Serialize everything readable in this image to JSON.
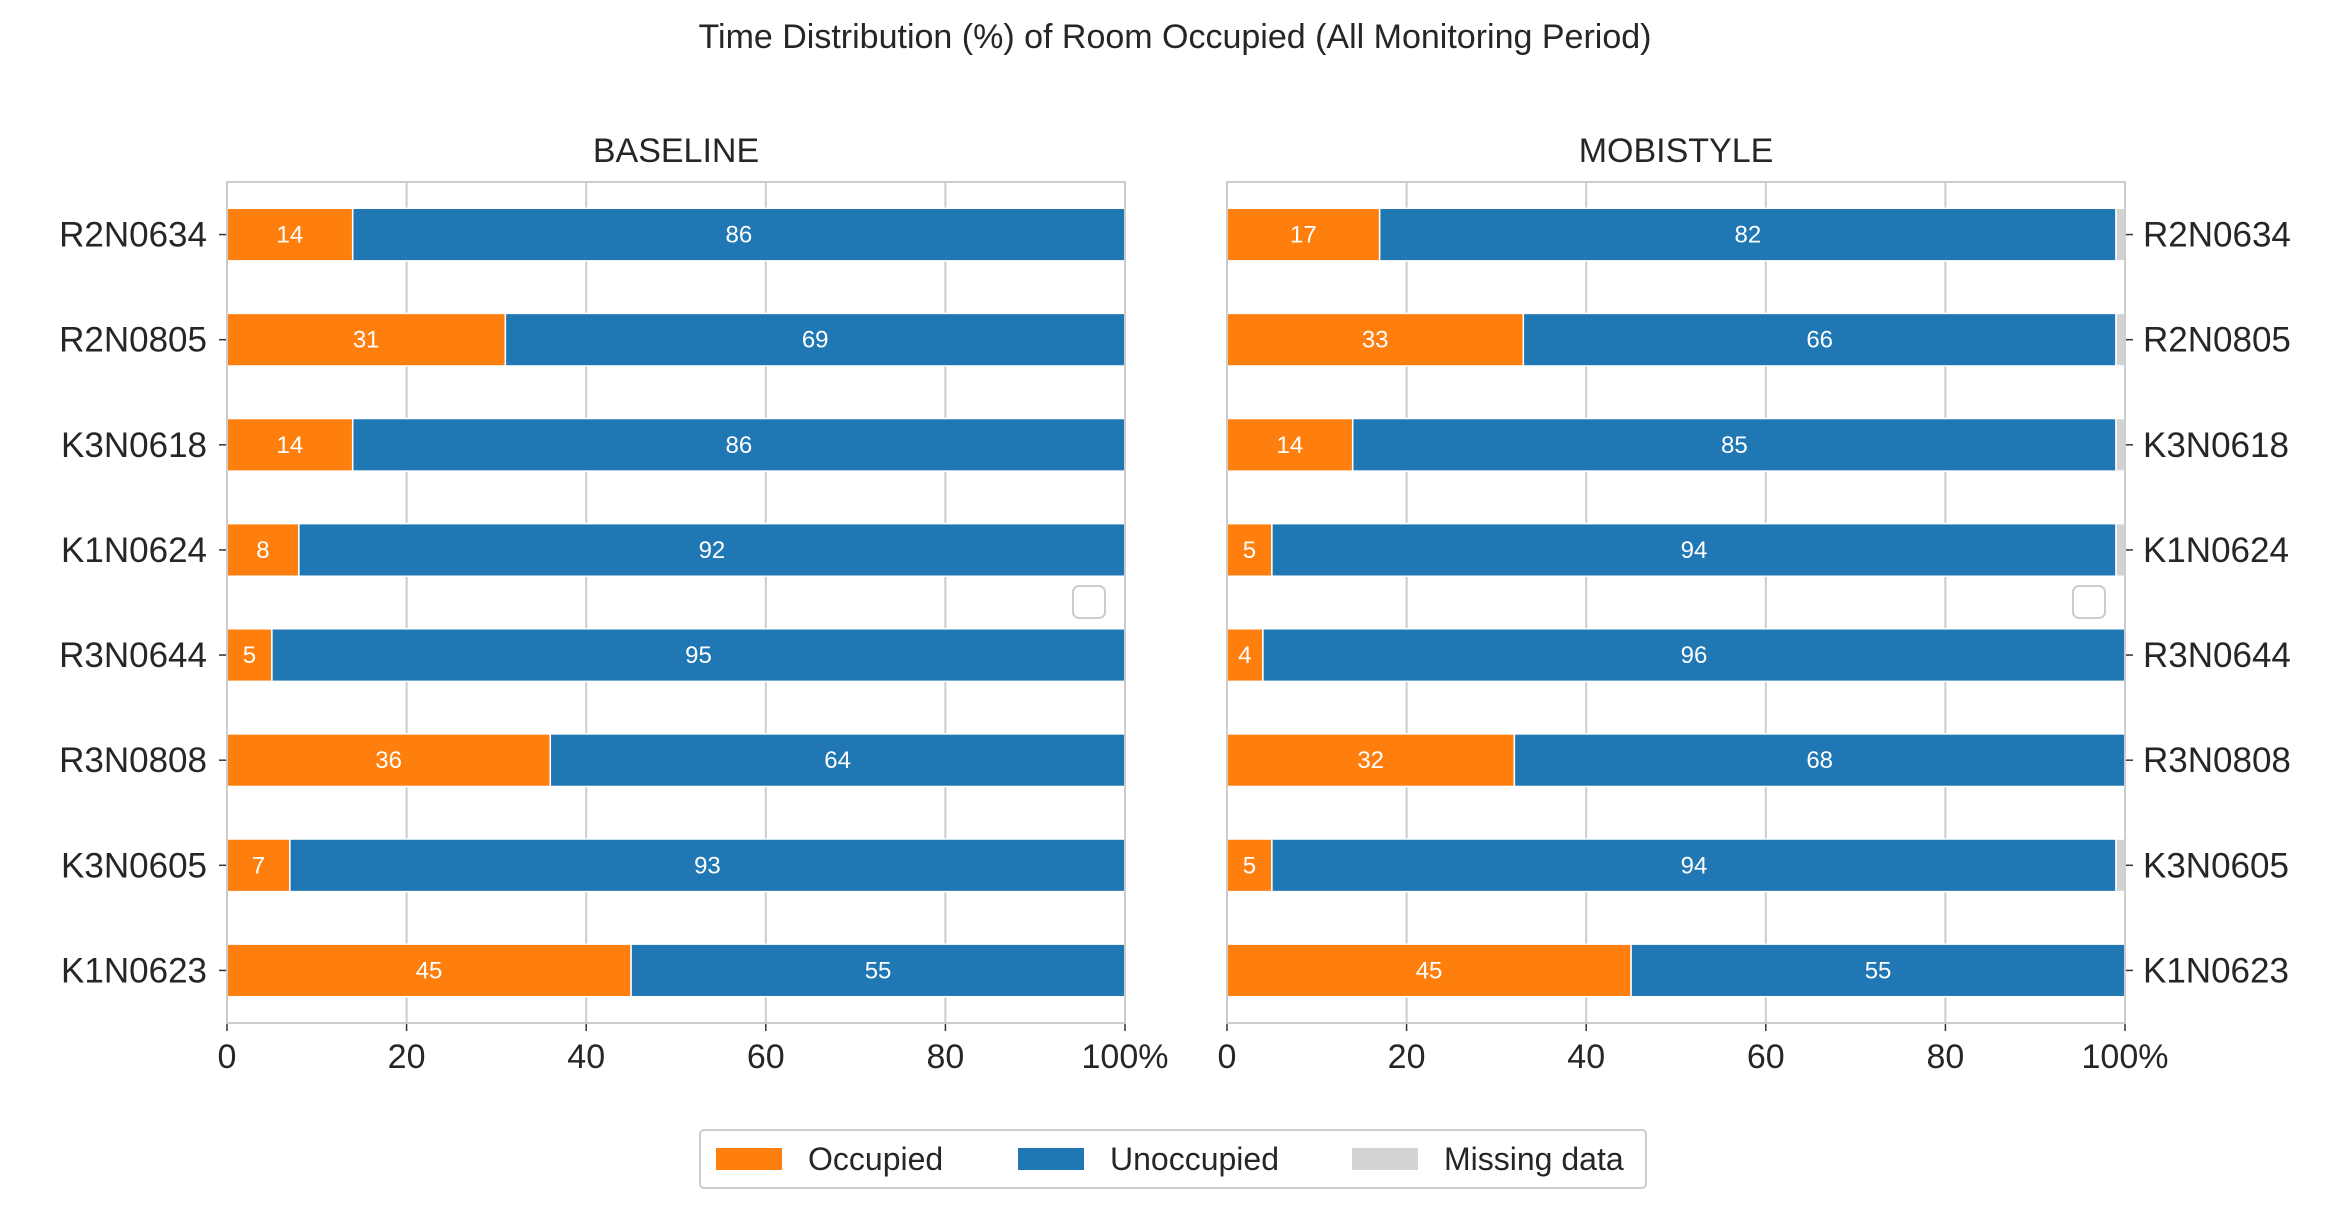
{
  "chart_data": {
    "type": "bar",
    "orientation": "horizontal",
    "stacked": true,
    "title": "Time Distribution (%) of Room Occupied (All Monitoring Period)",
    "xlim": [
      0,
      100
    ],
    "x_ticks": [
      "0",
      "20",
      "40",
      "60",
      "80",
      "100%"
    ],
    "grid": true,
    "legend_placement": "bottom-center",
    "legend": [
      {
        "name": "Occupied",
        "color": "#ff7f0e"
      },
      {
        "name": "Unoccupied",
        "color": "#1f77b4"
      },
      {
        "name": "Missing data",
        "color": "#d3d3d3"
      }
    ],
    "categories": [
      "R2N0634",
      "R2N0805",
      "K3N0618",
      "K1N0624",
      "R3N0644",
      "R3N0808",
      "K3N0605",
      "K1N0623"
    ],
    "panels": [
      {
        "title": "BASELINE",
        "label_side": "left",
        "series": [
          {
            "name": "Occupied",
            "values": [
              14,
              31,
              14,
              8,
              5,
              36,
              7,
              45
            ],
            "labels": [
              "14",
              "31",
              "14",
              "8",
              "5",
              "36",
              "7",
              "45"
            ]
          },
          {
            "name": "Unoccupied",
            "values": [
              86,
              69,
              86,
              92,
              95,
              64,
              93,
              55
            ],
            "labels": [
              "86",
              "69",
              "86",
              "92",
              "95",
              "64",
              "93",
              "55"
            ]
          },
          {
            "name": "Missing data",
            "values": [
              0,
              0,
              0,
              0,
              0,
              0,
              0,
              0
            ],
            "labels": [
              "",
              "",
              "",
              "",
              "",
              "",
              "",
              ""
            ]
          }
        ]
      },
      {
        "title": "MOBISTYLE",
        "label_side": "right",
        "series": [
          {
            "name": "Occupied",
            "values": [
              17,
              33,
              14,
              5,
              4,
              32,
              5,
              45
            ],
            "labels": [
              "17",
              "33",
              "14",
              "5",
              "4",
              "32",
              "5",
              "45"
            ]
          },
          {
            "name": "Unoccupied",
            "values": [
              82,
              66,
              85,
              94,
              96,
              68,
              94,
              55
            ],
            "labels": [
              "82",
              "66",
              "85",
              "94",
              "96",
              "68",
              "94",
              "55"
            ]
          },
          {
            "name": "Missing data",
            "values": [
              1,
              1,
              1,
              1,
              0,
              0,
              1,
              0
            ],
            "labels": [
              "",
              "",
              "",
              "",
              "",
              "",
              "",
              ""
            ]
          }
        ]
      }
    ]
  }
}
